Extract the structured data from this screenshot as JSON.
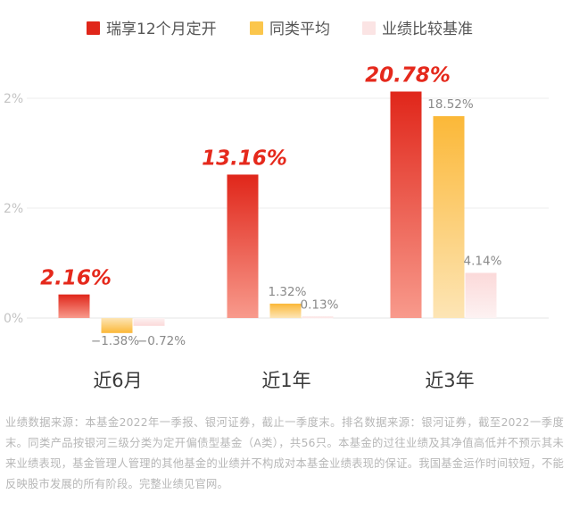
{
  "chart_data": {
    "type": "bar",
    "categories": [
      "近6月",
      "近1年",
      "近3年"
    ],
    "series": [
      {
        "name": "瑞享12个月定开",
        "values": [
          2.16,
          13.16,
          20.78
        ],
        "labels": [
          "2.16%",
          "13.16%",
          "20.78%"
        ],
        "color": "#e5291c"
      },
      {
        "name": "同类平均",
        "values": [
          -1.38,
          1.32,
          18.52
        ],
        "labels": [
          "−1.38%",
          "1.32%",
          "18.52%"
        ],
        "color": "#fbbe3c"
      },
      {
        "name": "业绩比较基准",
        "values": [
          -0.72,
          0.13,
          4.14
        ],
        "labels": [
          "−0.72%",
          "0.13%",
          "4.14%"
        ],
        "color": "#fbdede"
      }
    ],
    "yticks": [
      "0%",
      "2%",
      "2%"
    ],
    "ylim": [
      -3,
      22
    ],
    "grid": true,
    "legend_position": "top"
  },
  "footnote": "业绩数据来源：本基金2022年一季报、银河证券，截止一季度末。排名数据来源：银河证券，截至2022一季度末。同类产品按银河三级分类为定开偏债型基金（A类），共56只。本基金的过往业绩及其净值高低并不预示其未来业绩表现，基金管理人管理的其他基金的业绩并不构成对本基金业绩表现的保证。我国基金运作时间较短，不能反映股市发展的所有阶段。完整业绩见官网。"
}
